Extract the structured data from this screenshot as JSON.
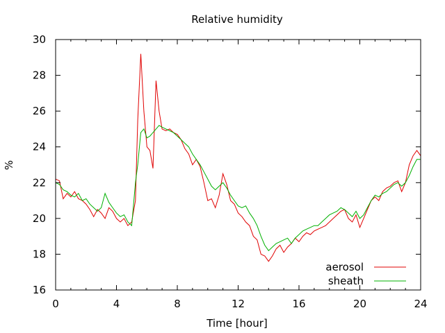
{
  "chart_data": {
    "type": "line",
    "title": "Relative humidity",
    "xlabel": "Time [hour]",
    "ylabel": "%",
    "xlim": [
      0,
      24
    ],
    "ylim": [
      16,
      30
    ],
    "xticks": [
      "0",
      "4",
      "8",
      "12",
      "16",
      "20",
      "24"
    ],
    "yticks": [
      "16",
      "18",
      "20",
      "22",
      "24",
      "26",
      "28",
      "30"
    ],
    "grid": false,
    "legend_position": "bottom-right",
    "series": [
      {
        "name": "aerosol",
        "color": "#e00000",
        "x": [
          0,
          0.25,
          0.5,
          0.75,
          1,
          1.25,
          1.5,
          1.75,
          2,
          2.25,
          2.5,
          2.75,
          3,
          3.25,
          3.5,
          3.75,
          4,
          4.25,
          4.5,
          4.75,
          5,
          5.25,
          5.4,
          5.6,
          5.8,
          6,
          6.2,
          6.4,
          6.6,
          6.8,
          7,
          7.25,
          7.5,
          7.75,
          8,
          8.25,
          8.5,
          8.75,
          9,
          9.25,
          9.5,
          9.75,
          10,
          10.25,
          10.5,
          10.75,
          11,
          11.25,
          11.5,
          11.75,
          12,
          12.25,
          12.5,
          12.75,
          13,
          13.25,
          13.5,
          13.75,
          14,
          14.25,
          14.5,
          14.75,
          15,
          15.25,
          15.5,
          15.75,
          16,
          16.25,
          16.5,
          16.75,
          17,
          17.25,
          17.5,
          17.75,
          18,
          18.25,
          18.5,
          18.75,
          19,
          19.25,
          19.5,
          19.75,
          20,
          20.25,
          20.5,
          20.75,
          21,
          21.25,
          21.5,
          21.75,
          22,
          22.25,
          22.5,
          22.75,
          23,
          23.25,
          23.5,
          23.75,
          24
        ],
        "y": [
          22.2,
          22.1,
          21.1,
          21.4,
          21.2,
          21.5,
          21.1,
          21.0,
          20.8,
          20.5,
          20.1,
          20.5,
          20.3,
          20.0,
          20.6,
          20.4,
          20.0,
          19.8,
          20.0,
          19.6,
          19.8,
          21.0,
          25.5,
          29.2,
          26.0,
          24.0,
          23.8,
          22.8,
          27.7,
          26.0,
          25.0,
          24.9,
          25.0,
          24.8,
          24.7,
          24.4,
          23.9,
          23.6,
          23.0,
          23.3,
          22.9,
          22.0,
          21.0,
          21.1,
          20.6,
          21.3,
          22.5,
          21.9,
          21.0,
          20.8,
          20.3,
          20.1,
          19.8,
          19.6,
          19.0,
          18.8,
          18.0,
          17.9,
          17.6,
          17.9,
          18.3,
          18.5,
          18.1,
          18.4,
          18.6,
          18.9,
          18.7,
          19.0,
          19.2,
          19.1,
          19.3,
          19.4,
          19.5,
          19.6,
          19.8,
          20.0,
          20.2,
          20.4,
          20.5,
          20.0,
          19.8,
          20.2,
          19.5,
          20.0,
          20.5,
          21.0,
          21.2,
          21.0,
          21.5,
          21.7,
          21.8,
          22.0,
          22.1,
          21.5,
          22.0,
          23.0,
          23.5,
          23.8,
          23.5
        ]
      },
      {
        "name": "sheath",
        "color": "#00b000",
        "x": [
          0,
          0.25,
          0.5,
          0.75,
          1,
          1.25,
          1.5,
          1.75,
          2,
          2.25,
          2.5,
          2.75,
          3,
          3.25,
          3.5,
          3.75,
          4,
          4.25,
          4.5,
          4.75,
          5,
          5.25,
          5.4,
          5.6,
          5.8,
          6,
          6.2,
          6.4,
          6.6,
          6.8,
          7,
          7.25,
          7.5,
          7.75,
          8,
          8.25,
          8.5,
          8.75,
          9,
          9.25,
          9.5,
          9.75,
          10,
          10.25,
          10.5,
          10.75,
          11,
          11.25,
          11.5,
          11.75,
          12,
          12.25,
          12.5,
          12.75,
          13,
          13.25,
          13.5,
          13.75,
          14,
          14.25,
          14.5,
          14.75,
          15,
          15.25,
          15.5,
          15.75,
          16,
          16.25,
          16.5,
          16.75,
          17,
          17.25,
          17.5,
          17.75,
          18,
          18.25,
          18.5,
          18.75,
          19,
          19.25,
          19.5,
          19.75,
          20,
          20.25,
          20.5,
          20.75,
          21,
          21.25,
          21.5,
          21.75,
          22,
          22.25,
          22.5,
          22.75,
          23,
          23.25,
          23.5,
          23.75,
          24
        ],
        "y": [
          22.0,
          21.9,
          21.6,
          21.5,
          21.3,
          21.2,
          21.4,
          21.0,
          21.1,
          20.8,
          20.6,
          20.4,
          20.6,
          21.4,
          20.9,
          20.6,
          20.3,
          20.1,
          20.2,
          19.8,
          19.6,
          22.0,
          23.0,
          24.8,
          25.0,
          24.5,
          24.6,
          24.8,
          25.0,
          25.2,
          25.1,
          25.0,
          24.9,
          24.8,
          24.6,
          24.4,
          24.2,
          24.0,
          23.6,
          23.3,
          23.0,
          22.6,
          22.2,
          21.8,
          21.6,
          21.8,
          22.0,
          21.7,
          21.3,
          21.0,
          20.7,
          20.6,
          20.7,
          20.3,
          20.0,
          19.6,
          19.0,
          18.5,
          18.2,
          18.4,
          18.6,
          18.7,
          18.8,
          18.9,
          18.6,
          18.9,
          19.1,
          19.3,
          19.4,
          19.5,
          19.6,
          19.6,
          19.8,
          20.0,
          20.2,
          20.3,
          20.4,
          20.6,
          20.5,
          20.3,
          20.1,
          20.4,
          20.0,
          20.2,
          20.6,
          21.0,
          21.3,
          21.2,
          21.4,
          21.5,
          21.7,
          21.9,
          22.0,
          21.8,
          22.0,
          22.4,
          22.9,
          23.3,
          23.3
        ]
      }
    ]
  }
}
